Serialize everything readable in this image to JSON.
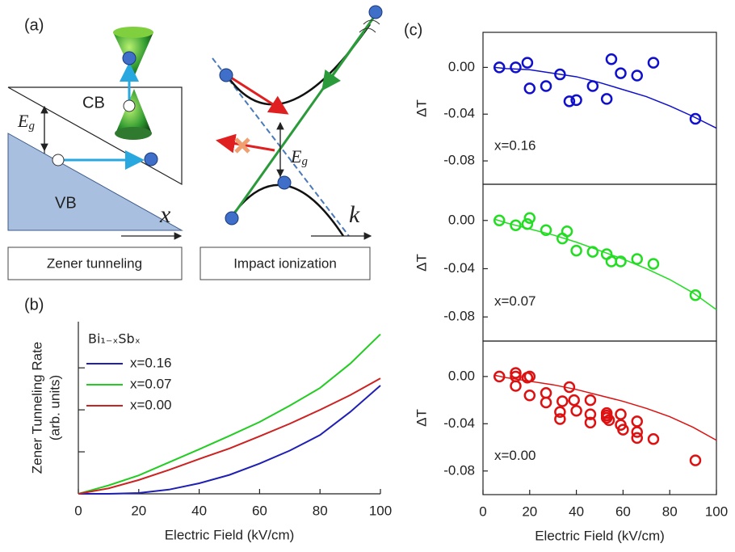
{
  "diagram": {
    "panel_label": "(a)",
    "left": {
      "cb": "CB",
      "vb": "VB",
      "eg": [
        "E",
        "g"
      ],
      "axis": "x",
      "caption": "Zener tunneling"
    },
    "right": {
      "eg": [
        "E",
        "g"
      ],
      "axis": "k",
      "caption": "Impact ionization"
    }
  },
  "chart_data": [
    {
      "type": "line",
      "panel_label": "(b)",
      "xlabel": "Electric Field (kV/cm)",
      "ylabel": [
        "Zener Tunneling Rate",
        "(arb. units)"
      ],
      "legend_title": "Bi₁₋ₓSbₓ",
      "xlim": [
        0,
        100
      ],
      "xticks": [
        0,
        20,
        40,
        60,
        80,
        100
      ],
      "ylim": [
        0,
        4.1
      ],
      "ytick_marks": [
        1,
        2,
        3
      ],
      "x": [
        0,
        10,
        20,
        30,
        40,
        50,
        60,
        70,
        80,
        90,
        100
      ],
      "series": [
        {
          "name": "x=0.16",
          "color": "#1f1fb4",
          "values": [
            0,
            0,
            0.02,
            0.1,
            0.25,
            0.45,
            0.72,
            1.03,
            1.4,
            1.95,
            2.58
          ]
        },
        {
          "name": "x=0.07",
          "color": "#22cc22",
          "values": [
            0,
            0.2,
            0.44,
            0.75,
            1.06,
            1.38,
            1.71,
            2.1,
            2.52,
            3.1,
            3.8
          ]
        },
        {
          "name": "x=0.00",
          "color": "#cc2222",
          "values": [
            0,
            0.13,
            0.33,
            0.57,
            0.83,
            1.08,
            1.37,
            1.67,
            2.0,
            2.35,
            2.75
          ]
        }
      ]
    },
    {
      "type": "scatter",
      "panel_label": "(c)",
      "ylabel": "ΔT",
      "annotation": "x=0.16",
      "xlim": [
        0,
        100
      ],
      "ylim": [
        -0.1,
        0.03
      ],
      "yticks": [
        {
          "value": 0,
          "label": "0.00"
        },
        {
          "value": -0.04,
          "label": "-0.04"
        },
        {
          "value": -0.08,
          "label": "-0.08"
        }
      ],
      "series": [
        {
          "color": "#1010cc",
          "style": "markers",
          "x": [
            7,
            14,
            19,
            20,
            27,
            33,
            37,
            40,
            47,
            53,
            55,
            59,
            66,
            73,
            91
          ],
          "values": [
            0,
            0,
            0.004,
            -0.018,
            -0.016,
            -0.006,
            -0.029,
            -0.028,
            -0.016,
            -0.027,
            0.007,
            -0.005,
            -0.007,
            0.004,
            -0.044
          ]
        },
        {
          "color": "#1010cc",
          "style": "line",
          "x": [
            5,
            10,
            20,
            30,
            40,
            50,
            60,
            70,
            80,
            90,
            100
          ],
          "values": [
            0,
            -0.001,
            -0.002,
            -0.005,
            -0.008,
            -0.013,
            -0.019,
            -0.025,
            -0.033,
            -0.042,
            -0.052
          ]
        }
      ]
    },
    {
      "type": "scatter",
      "ylabel": "ΔT",
      "annotation": "x=0.07",
      "xlim": [
        0,
        100
      ],
      "ylim": [
        -0.1,
        0.03
      ],
      "yticks": [
        {
          "value": 0,
          "label": "0.00"
        },
        {
          "value": -0.04,
          "label": "-0.04"
        },
        {
          "value": -0.08,
          "label": "-0.08"
        }
      ],
      "series": [
        {
          "color": "#22dd22",
          "style": "markers",
          "x": [
            7,
            14,
            19,
            20,
            27,
            34,
            36,
            40,
            47,
            53,
            55,
            59,
            66,
            73,
            91
          ],
          "values": [
            0,
            -0.004,
            -0.003,
            0.002,
            -0.008,
            -0.015,
            -0.009,
            -0.025,
            -0.026,
            -0.028,
            -0.034,
            -0.034,
            -0.032,
            -0.036,
            -0.062
          ]
        },
        {
          "color": "#22dd22",
          "style": "line",
          "x": [
            5,
            10,
            20,
            30,
            40,
            50,
            60,
            70,
            80,
            90,
            100
          ],
          "values": [
            0.001,
            -0.002,
            -0.007,
            -0.012,
            -0.018,
            -0.025,
            -0.032,
            -0.04,
            -0.049,
            -0.06,
            -0.074
          ]
        }
      ]
    },
    {
      "type": "scatter",
      "ylabel": "ΔT",
      "annotation": "x=0.00",
      "xlabel": "Electric Field (kV/cm)",
      "xlim": [
        0,
        100
      ],
      "xticks": [
        0,
        20,
        40,
        60,
        80,
        100
      ],
      "ylim": [
        -0.1,
        0.03
      ],
      "yticks": [
        {
          "value": 0,
          "label": "0.00"
        },
        {
          "value": -0.04,
          "label": "-0.04"
        },
        {
          "value": -0.08,
          "label": "-0.08"
        }
      ],
      "series": [
        {
          "color": "#dd1111",
          "style": "markers",
          "x": [
            7,
            14,
            14,
            14,
            19,
            20,
            20,
            27,
            27,
            34,
            33,
            33,
            37,
            39,
            40,
            46,
            46,
            46,
            53,
            53,
            54,
            53,
            59,
            59,
            60,
            66,
            66,
            66,
            73,
            91
          ],
          "values": [
            0,
            0,
            -0.008,
            0.003,
            -0.001,
            0,
            -0.016,
            -0.022,
            -0.014,
            -0.021,
            -0.03,
            -0.036,
            -0.009,
            -0.02,
            -0.029,
            -0.02,
            -0.032,
            -0.039,
            -0.031,
            -0.035,
            -0.037,
            -0.033,
            -0.032,
            -0.041,
            -0.045,
            -0.038,
            -0.047,
            -0.052,
            -0.053,
            -0.071
          ]
        },
        {
          "color": "#dd1111",
          "style": "line",
          "x": [
            5,
            10,
            20,
            30,
            40,
            50,
            60,
            70,
            80,
            90,
            100
          ],
          "values": [
            0.001,
            -0.001,
            -0.004,
            -0.007,
            -0.011,
            -0.016,
            -0.021,
            -0.027,
            -0.034,
            -0.043,
            -0.054
          ]
        }
      ]
    }
  ]
}
